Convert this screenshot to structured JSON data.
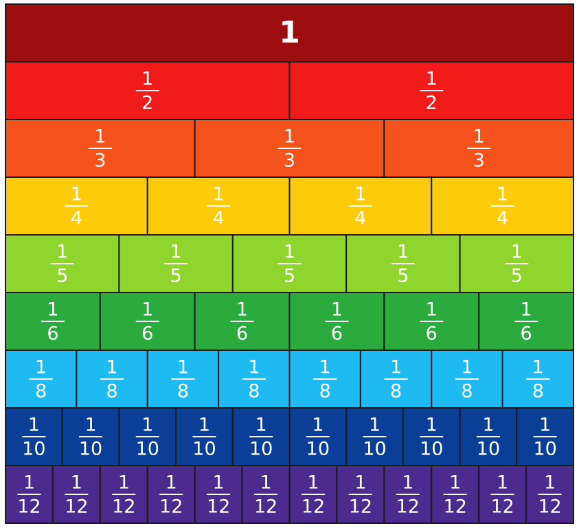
{
  "rows": [
    {
      "color": "#9b0d0f",
      "tiles": [
        {
          "numerator": "1"
        }
      ]
    },
    {
      "color": "#f21b1b",
      "tiles": [
        {
          "numerator": "1",
          "denominator": "2"
        },
        {
          "numerator": "1",
          "denominator": "2"
        }
      ]
    },
    {
      "color": "#f6521b",
      "tiles": [
        {
          "numerator": "1",
          "denominator": "3"
        },
        {
          "numerator": "1",
          "denominator": "3"
        },
        {
          "numerator": "1",
          "denominator": "3"
        }
      ]
    },
    {
      "color": "#fdca0c",
      "tiles": [
        {
          "numerator": "1",
          "denominator": "4"
        },
        {
          "numerator": "1",
          "denominator": "4"
        },
        {
          "numerator": "1",
          "denominator": "4"
        },
        {
          "numerator": "1",
          "denominator": "4"
        }
      ]
    },
    {
      "color": "#8fd52d",
      "tiles": [
        {
          "numerator": "1",
          "denominator": "5"
        },
        {
          "numerator": "1",
          "denominator": "5"
        },
        {
          "numerator": "1",
          "denominator": "5"
        },
        {
          "numerator": "1",
          "denominator": "5"
        },
        {
          "numerator": "1",
          "denominator": "5"
        }
      ]
    },
    {
      "color": "#2bab3d",
      "tiles": [
        {
          "numerator": "1",
          "denominator": "6"
        },
        {
          "numerator": "1",
          "denominator": "6"
        },
        {
          "numerator": "1",
          "denominator": "6"
        },
        {
          "numerator": "1",
          "denominator": "6"
        },
        {
          "numerator": "1",
          "denominator": "6"
        },
        {
          "numerator": "1",
          "denominator": "6"
        }
      ]
    },
    {
      "color": "#1fbaf1",
      "tiles": [
        {
          "numerator": "1",
          "denominator": "8"
        },
        {
          "numerator": "1",
          "denominator": "8"
        },
        {
          "numerator": "1",
          "denominator": "8"
        },
        {
          "numerator": "1",
          "denominator": "8"
        },
        {
          "numerator": "1",
          "denominator": "8"
        },
        {
          "numerator": "1",
          "denominator": "8"
        },
        {
          "numerator": "1",
          "denominator": "8"
        },
        {
          "numerator": "1",
          "denominator": "8"
        }
      ]
    },
    {
      "color": "#0b3f97",
      "tiles": [
        {
          "numerator": "1",
          "denominator": "10"
        },
        {
          "numerator": "1",
          "denominator": "10"
        },
        {
          "numerator": "1",
          "denominator": "10"
        },
        {
          "numerator": "1",
          "denominator": "10"
        },
        {
          "numerator": "1",
          "denominator": "10"
        },
        {
          "numerator": "1",
          "denominator": "10"
        },
        {
          "numerator": "1",
          "denominator": "10"
        },
        {
          "numerator": "1",
          "denominator": "10"
        },
        {
          "numerator": "1",
          "denominator": "10"
        },
        {
          "numerator": "1",
          "denominator": "10"
        }
      ]
    },
    {
      "color": "#4b2b8d",
      "tiles": [
        {
          "numerator": "1",
          "denominator": "12"
        },
        {
          "numerator": "1",
          "denominator": "12"
        },
        {
          "numerator": "1",
          "denominator": "12"
        },
        {
          "numerator": "1",
          "denominator": "12"
        },
        {
          "numerator": "1",
          "denominator": "12"
        },
        {
          "numerator": "1",
          "denominator": "12"
        },
        {
          "numerator": "1",
          "denominator": "12"
        },
        {
          "numerator": "1",
          "denominator": "12"
        },
        {
          "numerator": "1",
          "denominator": "12"
        },
        {
          "numerator": "1",
          "denominator": "12"
        },
        {
          "numerator": "1",
          "denominator": "12"
        },
        {
          "numerator": "1",
          "denominator": "12"
        }
      ]
    }
  ]
}
